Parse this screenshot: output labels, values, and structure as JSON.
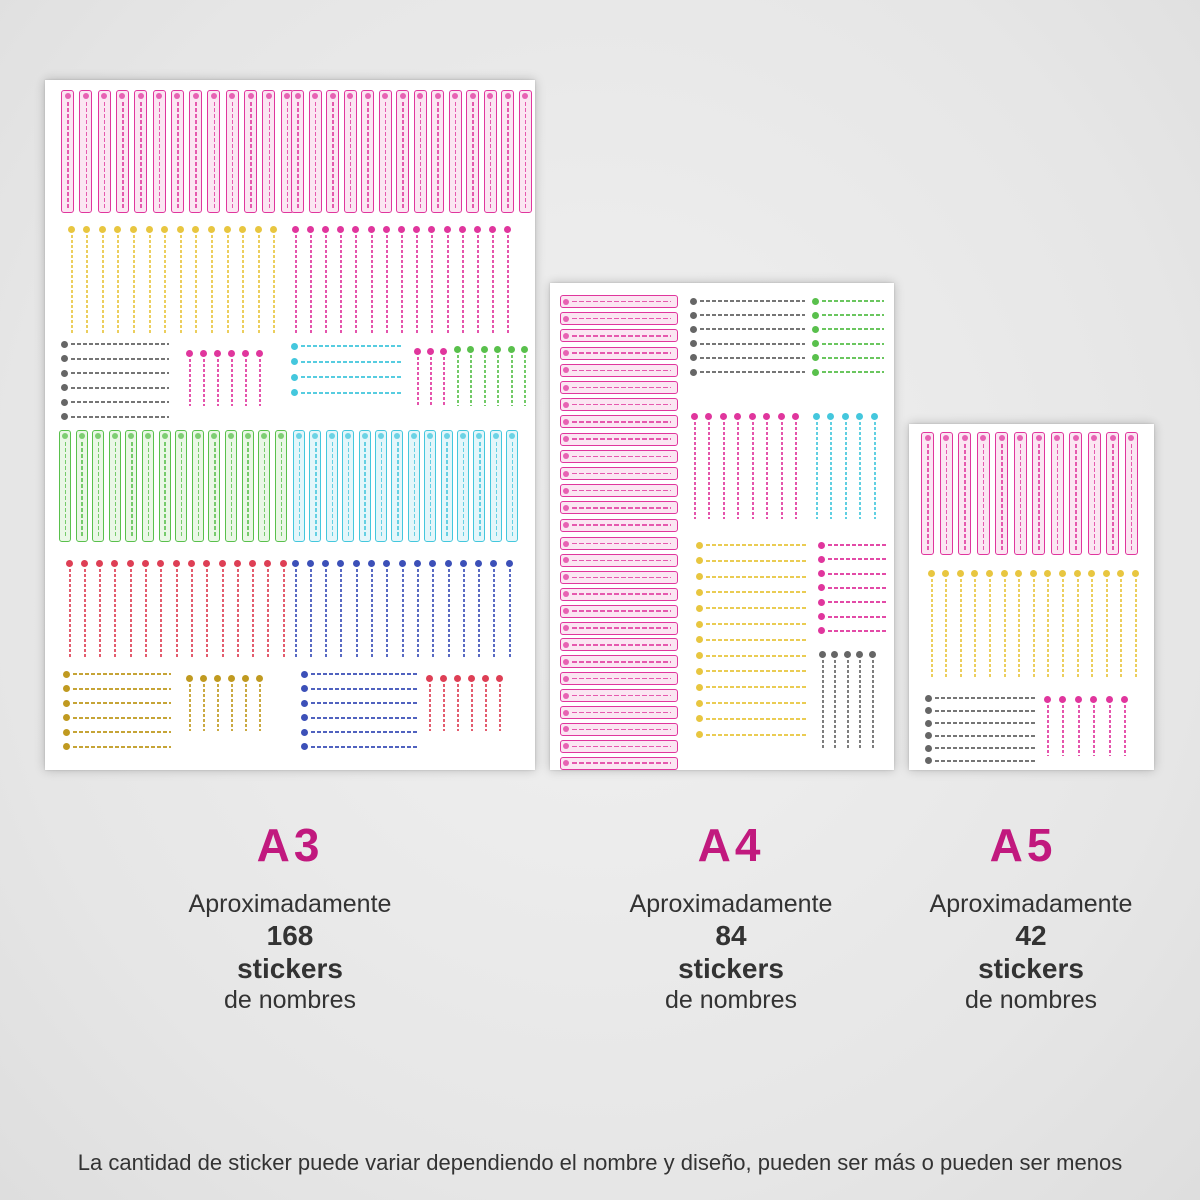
{
  "colors": {
    "pink": "#e0369d",
    "yellow": "#e8c640",
    "green": "#59c04c",
    "cyan": "#44c7dd",
    "blue": "#3c50b8",
    "red": "#de3f55",
    "olive": "#c09a20",
    "magenta": "#c1197e",
    "text": "#333333"
  },
  "sizes": [
    {
      "id": "a3",
      "label": "A3",
      "pre": "Aproximadamente",
      "count": "168",
      "unit": "stickers",
      "post": "de nombres"
    },
    {
      "id": "a4",
      "label": "A4",
      "pre": "Aproximadamente",
      "count": "84",
      "unit": "stickers",
      "post": "de nombres"
    },
    {
      "id": "a5",
      "label": "A5",
      "pre": "Aproximadamente",
      "count": "42",
      "unit": "stickers",
      "post": "de nombres"
    }
  ],
  "footnote": "La cantidad de sticker puede variar dependiendo el nombre y diseño, pueden ser más o pueden ser menos"
}
